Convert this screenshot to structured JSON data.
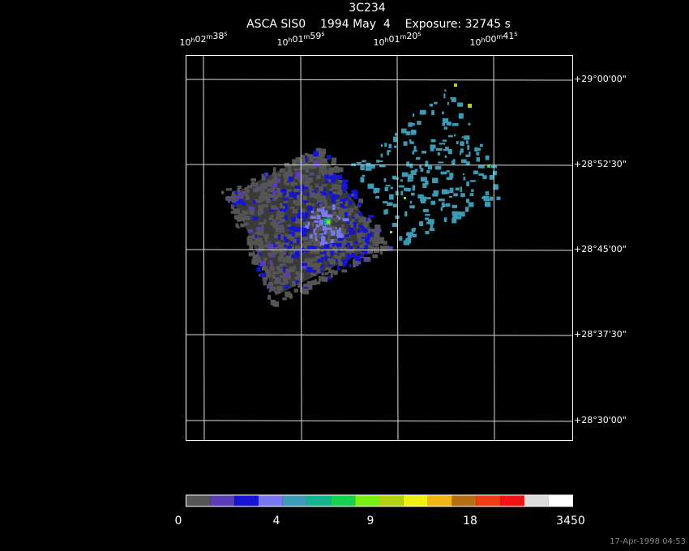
{
  "header": {
    "title": "3C234",
    "subtitle": "ASCA SIS0    1994 May  4    Exposure: 32745 s"
  },
  "ra_units": [
    "h",
    "m",
    "s"
  ],
  "ra_labels": [
    [
      "10",
      "02",
      "38"
    ],
    [
      "10",
      "01",
      "59"
    ],
    [
      "10",
      "01",
      "20"
    ],
    [
      "10",
      "00",
      "41"
    ]
  ],
  "dec_labels": [
    "+29°00'00\"",
    "+28°52'30\"",
    "+28°45'00\"",
    "+28°37'30\"",
    "+28°30'00\""
  ],
  "colorbar": {
    "colors": [
      "#555555",
      "#5a3cb4",
      "#1414d2",
      "#7878f0",
      "#3c9bb4",
      "#14b48c",
      "#14d250",
      "#78f014",
      "#b4d214",
      "#f0f014",
      "#f0b414",
      "#b46e14",
      "#f03c14",
      "#f01414",
      "#dcdcdc",
      "#ffffff"
    ],
    "labels": [
      0,
      4,
      9,
      18,
      3450
    ]
  },
  "timestamp": "17-Apr-1998 04:53"
}
